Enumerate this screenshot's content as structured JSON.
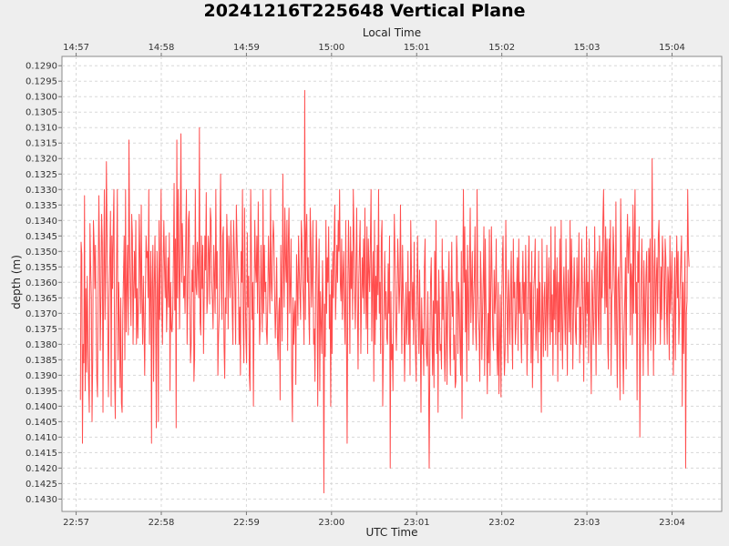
{
  "chart_data": {
    "type": "line",
    "title": "20241216T225648 Vertical Plane",
    "xlabel": "UTC Time",
    "top_xlabel": "Local Time",
    "ylabel": "depth (m)",
    "y_inverted": true,
    "ylim": [
      0.1287,
      0.1434
    ],
    "yticks": [
      "0.1290",
      "0.1295",
      "0.1300",
      "0.1305",
      "0.1310",
      "0.1315",
      "0.1320",
      "0.1325",
      "0.1330",
      "0.1335",
      "0.1340",
      "0.1345",
      "0.1350",
      "0.1355",
      "0.1360",
      "0.1365",
      "0.1370",
      "0.1375",
      "0.1380",
      "0.1385",
      "0.1390",
      "0.1395",
      "0.1400",
      "0.1405",
      "0.1410",
      "0.1415",
      "0.1420",
      "0.1425",
      "0.1430"
    ],
    "xlim": [
      "22:56:50",
      "23:04:35"
    ],
    "xticks": [
      "22:57",
      "22:58",
      "22:59",
      "23:00",
      "23:01",
      "23:02",
      "23:03",
      "23:04"
    ],
    "top_xticks": [
      "14:57",
      "14:58",
      "14:59",
      "15:00",
      "15:01",
      "15:02",
      "15:03",
      "15:04"
    ],
    "grid": true,
    "legend": "none",
    "series": [
      {
        "color": "#ff4d4d",
        "x_start": "22:57:03",
        "x_end": "23:04:12",
        "values": [
          0.1398,
          0.1347,
          0.1351,
          0.1412,
          0.138,
          0.1386,
          0.1332,
          0.1395,
          0.1362,
          0.1389,
          0.1358,
          0.1379,
          0.1392,
          0.1402,
          0.1341,
          0.1355,
          0.1365,
          0.1405,
          0.1385,
          0.134,
          0.1347,
          0.1362,
          0.1348,
          0.1372,
          0.1391,
          0.1397,
          0.136,
          0.1332,
          0.1352,
          0.1382,
          0.1365,
          0.1338,
          0.1347,
          0.1402,
          0.136,
          0.133,
          0.1372,
          0.1355,
          0.1321,
          0.1345,
          0.1375,
          0.1397,
          0.1365,
          0.1352,
          0.1337,
          0.14,
          0.1345,
          0.1362,
          0.1342,
          0.133,
          0.139,
          0.1404,
          0.137,
          0.1352,
          0.133,
          0.1385,
          0.136,
          0.1374,
          0.1394,
          0.1365,
          0.1399,
          0.1402,
          0.137,
          0.1358,
          0.1345,
          0.1385,
          0.133,
          0.1376,
          0.1362,
          0.1348,
          0.1377,
          0.1314,
          0.1348,
          0.1362,
          0.1374,
          0.1338,
          0.1345,
          0.138,
          0.1362,
          0.135,
          0.1365,
          0.134,
          0.138,
          0.1362,
          0.1378,
          0.1366,
          0.1338,
          0.1352,
          0.137,
          0.1335,
          0.1365,
          0.138,
          0.1358,
          0.1374,
          0.139,
          0.1365,
          0.1345,
          0.1352,
          0.135,
          0.1365,
          0.133,
          0.138,
          0.1362,
          0.135,
          0.1412,
          0.136,
          0.1348,
          0.1392,
          0.1362,
          0.1345,
          0.137,
          0.1407,
          0.135,
          0.1362,
          0.1405,
          0.134,
          0.1372,
          0.1352,
          0.133,
          0.137,
          0.138,
          0.1355,
          0.134,
          0.1355,
          0.1365,
          0.1345,
          0.1376,
          0.1365,
          0.1352,
          0.1368,
          0.1344,
          0.1395,
          0.136,
          0.1375,
          0.1376,
          0.137,
          0.1353,
          0.1328,
          0.1369,
          0.1346,
          0.1407,
          0.1314,
          0.1365,
          0.133,
          0.1352,
          0.1375,
          0.1345,
          0.1312,
          0.136,
          0.1341,
          0.1352,
          0.1365,
          0.1358,
          0.137,
          0.1346,
          0.133,
          0.138,
          0.1365,
          0.134,
          0.1337,
          0.1365,
          0.1386,
          0.138,
          0.1356,
          0.1363,
          0.1348,
          0.1392,
          0.1384,
          0.133,
          0.1361,
          0.1364,
          0.1347,
          0.1354,
          0.1365,
          0.131,
          0.1373,
          0.1377,
          0.1345,
          0.1362,
          0.1348,
          0.1383,
          0.1365,
          0.1345,
          0.1356,
          0.1331,
          0.137,
          0.1365,
          0.1345,
          0.135,
          0.1367,
          0.1336,
          0.134,
          0.136,
          0.1366,
          0.1375,
          0.1348,
          0.1358,
          0.137,
          0.133,
          0.1362,
          0.135,
          0.139,
          0.1377,
          0.137,
          0.1345,
          0.1325,
          0.136,
          0.1372,
          0.1345,
          0.1342,
          0.138,
          0.1391,
          0.1365,
          0.137,
          0.1338,
          0.1348,
          0.1375,
          0.1345,
          0.1355,
          0.1365,
          0.134,
          0.1352,
          0.1369,
          0.138,
          0.134,
          0.135,
          0.1363,
          0.138,
          0.1335,
          0.1346,
          0.1355,
          0.136,
          0.138,
          0.1368,
          0.139,
          0.135,
          0.136,
          0.133,
          0.1373,
          0.1386,
          0.1336,
          0.1362,
          0.1378,
          0.1386,
          0.1344,
          0.1368,
          0.1358,
          0.139,
          0.1395,
          0.133,
          0.135,
          0.1372,
          0.136,
          0.14,
          0.1367,
          0.134,
          0.1355,
          0.136,
          0.1345,
          0.137,
          0.1334,
          0.1358,
          0.138,
          0.1373,
          0.1348,
          0.1362,
          0.1376,
          0.133,
          0.137,
          0.1348,
          0.1363,
          0.136,
          0.1376,
          0.138,
          0.1365,
          0.1345,
          0.1358,
          0.137,
          0.133,
          0.136,
          0.1366,
          0.135,
          0.134,
          0.1346,
          0.1365,
          0.1378,
          0.1368,
          0.1352,
          0.1377,
          0.1385,
          0.137,
          0.1365,
          0.1398,
          0.1348,
          0.1362,
          0.1379,
          0.1325,
          0.1354,
          0.1368,
          0.1336,
          0.1352,
          0.136,
          0.134,
          0.1382,
          0.1347,
          0.1336,
          0.137,
          0.1361,
          0.1346,
          0.139,
          0.1405,
          0.1365,
          0.138,
          0.137,
          0.1366,
          0.1393,
          0.1351,
          0.136,
          0.1374,
          0.1345,
          0.1356,
          0.1364,
          0.1372,
          0.134,
          0.1347,
          0.136,
          0.1366,
          0.138,
          0.1298,
          0.1372,
          0.1344,
          0.1338,
          0.136,
          0.1352,
          0.137,
          0.138,
          0.1336,
          0.1346,
          0.1368,
          0.1358,
          0.134,
          0.138,
          0.1375,
          0.1392,
          0.1363,
          0.134,
          0.1356,
          0.14,
          0.1364,
          0.1346,
          0.1395,
          0.1363,
          0.1373,
          0.1383,
          0.1353,
          0.1368,
          0.1428,
          0.1367,
          0.1384,
          0.134,
          0.137,
          0.1352,
          0.136,
          0.1342,
          0.1375,
          0.1364,
          0.14,
          0.1356,
          0.1383,
          0.135,
          0.1365,
          0.1346,
          0.1335,
          0.1372,
          0.1362,
          0.1348,
          0.136,
          0.134,
          0.135,
          0.133,
          0.136,
          0.1366,
          0.1346,
          0.1372,
          0.1358,
          0.135,
          0.137,
          0.138,
          0.134,
          0.1376,
          0.1412,
          0.1363,
          0.134,
          0.1356,
          0.1383,
          0.1342,
          0.1362,
          0.135,
          0.1372,
          0.133,
          0.1345,
          0.1363,
          0.1375,
          0.1354,
          0.1336,
          0.1366,
          0.1388,
          0.136,
          0.135,
          0.134,
          0.1383,
          0.1365,
          0.1352,
          0.1365,
          0.1346,
          0.137,
          0.1336,
          0.136,
          0.1375,
          0.1342,
          0.1383,
          0.1346,
          0.1356,
          0.1363,
          0.1347,
          0.133,
          0.1379,
          0.136,
          0.135,
          0.1392,
          0.134,
          0.138,
          0.1358,
          0.1372,
          0.1348,
          0.1364,
          0.133,
          0.137,
          0.136,
          0.1383,
          0.1346,
          0.134,
          0.14,
          0.1383,
          0.1366,
          0.135,
          0.1372,
          0.1363,
          0.1378,
          0.138,
          0.1354,
          0.137,
          0.1345,
          0.142,
          0.1363,
          0.1385,
          0.138,
          0.1395,
          0.136,
          0.1338,
          0.1352,
          0.1372,
          0.1382,
          0.1366,
          0.1346,
          0.1356,
          0.137,
          0.136,
          0.1335,
          0.1363,
          0.1383,
          0.1348,
          0.1362,
          0.137,
          0.1392,
          0.1376,
          0.136,
          0.138,
          0.137,
          0.135,
          0.138,
          0.1363,
          0.139,
          0.134,
          0.1355,
          0.1372,
          0.136,
          0.138,
          0.1347,
          0.137,
          0.1383,
          0.1392,
          0.1363,
          0.1345,
          0.1368,
          0.1383,
          0.1356,
          0.1376,
          0.1402,
          0.1365,
          0.138,
          0.1375,
          0.139,
          0.1355,
          0.1346,
          0.1377,
          0.1384,
          0.1387,
          0.1363,
          0.139,
          0.142,
          0.1383,
          0.136,
          0.1352,
          0.1376,
          0.139,
          0.1366,
          0.1394,
          0.135,
          0.137,
          0.134,
          0.1383,
          0.1366,
          0.1402,
          0.1356,
          0.137,
          0.1382,
          0.138,
          0.1388,
          0.1346,
          0.1372,
          0.1356,
          0.138,
          0.1392,
          0.1376,
          0.136,
          0.1393,
          0.1372,
          0.136,
          0.135,
          0.138,
          0.139,
          0.1365,
          0.1347,
          0.1371,
          0.1363,
          0.1385,
          0.1377,
          0.1394,
          0.1392,
          0.1345,
          0.1352,
          0.1383,
          0.136,
          0.1366,
          0.138,
          0.139,
          0.135,
          0.1404,
          0.1367,
          0.133,
          0.136,
          0.1342,
          0.1376,
          0.1356,
          0.1392,
          0.1348,
          0.1364,
          0.1382,
          0.1354,
          0.1336,
          0.1373,
          0.136,
          0.135,
          0.138,
          0.1366,
          0.1358,
          0.1342,
          0.1376,
          0.1382,
          0.133,
          0.136,
          0.1371,
          0.1376,
          0.1392,
          0.135,
          0.136,
          0.1385,
          0.137,
          0.1359,
          0.1342,
          0.139,
          0.1346,
          0.1366,
          0.138,
          0.1396,
          0.137,
          0.1386,
          0.1343,
          0.139,
          0.1363,
          0.1342,
          0.136,
          0.1377,
          0.1382,
          0.1356,
          0.137,
          0.1364,
          0.1346,
          0.1382,
          0.139,
          0.136,
          0.1396,
          0.138,
          0.1364,
          0.1397,
          0.137,
          0.1352,
          0.1345,
          0.1376,
          0.139,
          0.1382,
          0.134,
          0.136,
          0.137,
          0.1386,
          0.1356,
          0.1366,
          0.138,
          0.1363,
          0.135,
          0.1376,
          0.1388,
          0.1346,
          0.1365,
          0.136,
          0.138,
          0.1374,
          0.136,
          0.1352,
          0.1382,
          0.1346,
          0.137,
          0.136,
          0.1376,
          0.1386,
          0.1364,
          0.135,
          0.137,
          0.136,
          0.138,
          0.1348,
          0.1362,
          0.139,
          0.1376,
          0.1355,
          0.1345,
          0.1372,
          0.136,
          0.1386,
          0.135,
          0.1394,
          0.138,
          0.1362,
          0.1357,
          0.1346,
          0.1382,
          0.1372,
          0.1362,
          0.1386,
          0.135,
          0.1376,
          0.136,
          0.138,
          0.1402,
          0.1346,
          0.137,
          0.1384,
          0.1365,
          0.136,
          0.1382,
          0.137,
          0.1348,
          0.1384,
          0.1362,
          0.1352,
          0.137,
          0.138,
          0.1342,
          0.1376,
          0.1364,
          0.139,
          0.1356,
          0.1372,
          0.1342,
          0.138,
          0.1362,
          0.1352,
          0.1392,
          0.136,
          0.1376,
          0.1346,
          0.1382,
          0.134,
          0.1372,
          0.1388,
          0.1364,
          0.1355,
          0.1368,
          0.138,
          0.1346,
          0.137,
          0.139,
          0.1356,
          0.1366,
          0.1376,
          0.134,
          0.138,
          0.1346,
          0.136,
          0.1388,
          0.137,
          0.1352,
          0.1364,
          0.1376,
          0.138,
          0.1352,
          0.1368,
          0.136,
          0.1344,
          0.1386,
          0.1368,
          0.138,
          0.1346,
          0.136,
          0.1372,
          0.1392,
          0.1352,
          0.1364,
          0.1381,
          0.1342,
          0.137,
          0.136,
          0.1386,
          0.1346,
          0.1372,
          0.138,
          0.1396,
          0.1356,
          0.1364,
          0.138,
          0.1372,
          0.1342,
          0.1365,
          0.139,
          0.1356,
          0.135,
          0.137,
          0.138,
          0.1345,
          0.136,
          0.138,
          0.135,
          0.1365,
          0.134,
          0.133,
          0.1354,
          0.137,
          0.1342,
          0.1368,
          0.1346,
          0.138,
          0.1388,
          0.1346,
          0.1362,
          0.134,
          0.139,
          0.1365,
          0.1362,
          0.1342,
          0.135,
          0.1365,
          0.138,
          0.1334,
          0.1372,
          0.1394,
          0.136,
          0.1355,
          0.137,
          0.1398,
          0.1333,
          0.135,
          0.136,
          0.138,
          0.1396,
          0.1376,
          0.1365,
          0.1352,
          0.1388,
          0.135,
          0.1338,
          0.1357,
          0.1346,
          0.1342,
          0.1377,
          0.1354,
          0.1358,
          0.138,
          0.1335,
          0.137,
          0.1345,
          0.133,
          0.137,
          0.136,
          0.1398,
          0.135,
          0.136,
          0.1342,
          0.141,
          0.1382,
          0.136,
          0.1346,
          0.1366,
          0.139,
          0.1353,
          0.1368,
          0.138,
          0.1358,
          0.135,
          0.1372,
          0.139,
          0.1349,
          0.136,
          0.1346,
          0.1382,
          0.137,
          0.132,
          0.1365,
          0.139,
          0.1355,
          0.1346,
          0.138,
          0.136,
          0.1352,
          0.137,
          0.1345,
          0.134,
          0.136,
          0.138,
          0.1355,
          0.1372,
          0.1345,
          0.1352,
          0.136,
          0.138,
          0.1346,
          0.1352,
          0.1368,
          0.138,
          0.1355,
          0.136,
          0.1385,
          0.1345,
          0.137,
          0.136,
          0.135,
          0.1372,
          0.139,
          0.137,
          0.1352,
          0.1385,
          0.136,
          0.1345,
          0.1365,
          0.135,
          0.138,
          0.137,
          0.136,
          0.1352,
          0.1345,
          0.14,
          0.136,
          0.1383,
          0.1365,
          0.135,
          0.142,
          0.137,
          0.1366,
          0.133,
          0.135,
          0.1355
        ]
      }
    ]
  }
}
